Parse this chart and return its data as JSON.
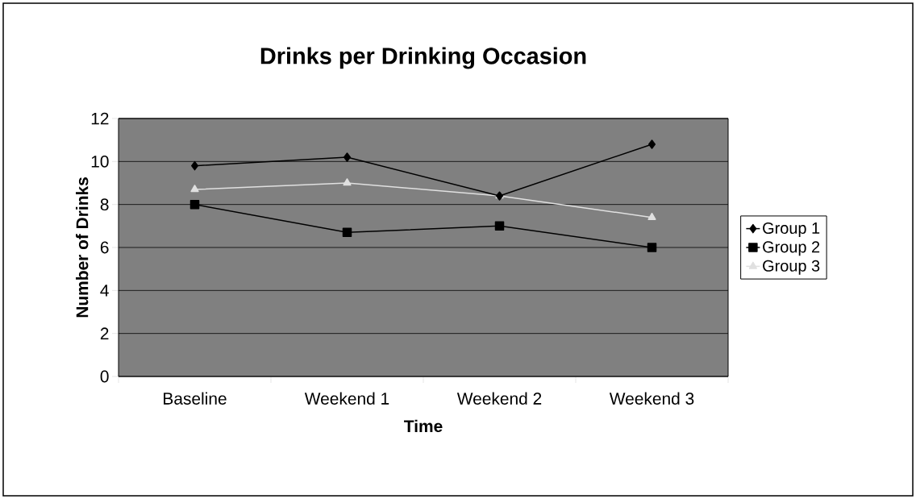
{
  "chart_data": {
    "type": "line",
    "title": "Drinks per Drinking Occasion",
    "xlabel": "Time",
    "ylabel": "Number of Drinks",
    "categories": [
      "Baseline",
      "Weekend 1",
      "Weekend 2",
      "Weekend 3"
    ],
    "series": [
      {
        "name": "Group 1",
        "color": "#000000",
        "marker": "diamond",
        "values": [
          9.8,
          10.2,
          8.4,
          10.8
        ]
      },
      {
        "name": "Group 2",
        "color": "#000000",
        "marker": "square",
        "values": [
          8.0,
          6.7,
          7.0,
          6.0
        ]
      },
      {
        "name": "Group 3",
        "color": "#e0e0e0",
        "marker": "triangle",
        "values": [
          8.7,
          9.0,
          8.4,
          7.4
        ]
      }
    ],
    "ylim": [
      0,
      12
    ],
    "yticks": [
      0,
      2,
      4,
      6,
      8,
      10,
      12
    ],
    "grid": "y",
    "legend": "right",
    "line_style": "solid"
  }
}
